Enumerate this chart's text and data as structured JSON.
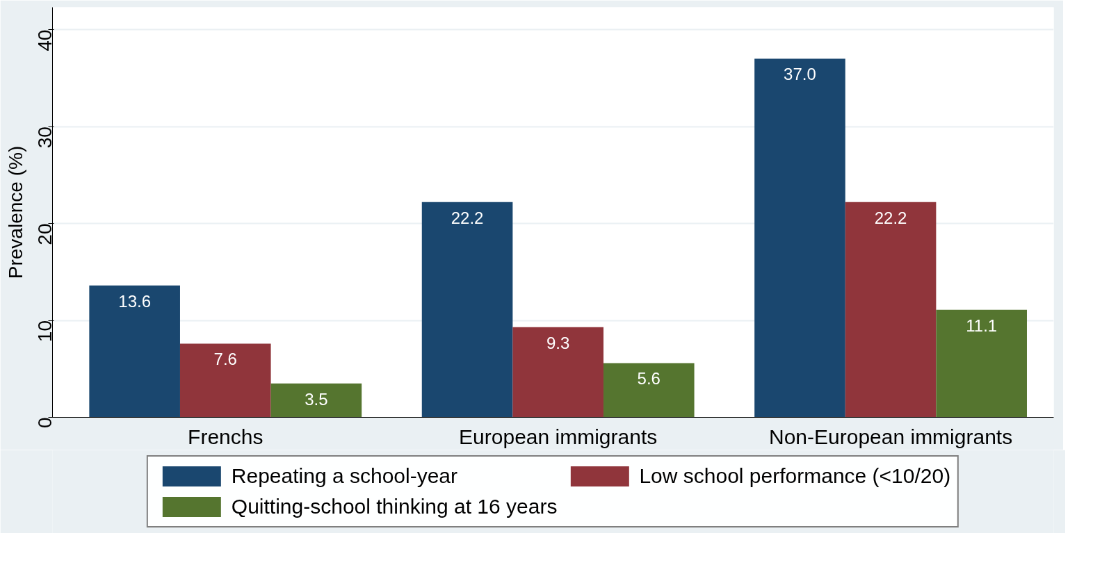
{
  "chart_data": {
    "type": "bar",
    "ylabel": "Prevalence (%)",
    "categories": [
      "Frenchs",
      "European immigrants",
      "Non-European immigrants"
    ],
    "series": [
      {
        "name": "Repeating a school-year",
        "color": "#1a476f",
        "values": [
          13.6,
          22.2,
          37.0
        ],
        "value_labels": [
          "13.6",
          "22.2",
          "37.0"
        ]
      },
      {
        "name": "Low school performance (<10/20)",
        "color": "#90353b",
        "values": [
          7.6,
          9.3,
          22.2
        ],
        "value_labels": [
          "7.6",
          "9.3",
          "22.2"
        ]
      },
      {
        "name": "Quitting-school thinking at 16 years",
        "color": "#55752f",
        "values": [
          3.5,
          5.6,
          11.1
        ],
        "value_labels": [
          "3.5",
          "5.6",
          "11.1"
        ]
      }
    ],
    "ylim": [
      0,
      42.3
    ],
    "yticks": [
      0,
      10,
      20,
      30,
      40
    ],
    "grid": "y",
    "legend": "bottom"
  }
}
